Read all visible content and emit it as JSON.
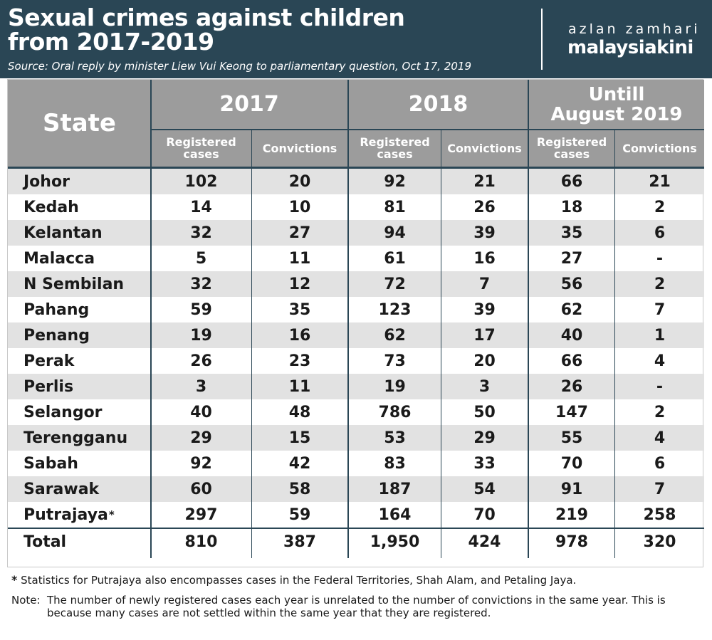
{
  "header": {
    "title_line1": "Sexual crimes against children",
    "title_line2": "from 2017-2019",
    "source": "Source: Oral reply by minister Liew Vui Keong to parliamentary question, Oct 17, 2019",
    "brand_top": "azlan zamhari",
    "brand_bottom": "malaysiakini",
    "bg_color": "#2a4655"
  },
  "table": {
    "state_header": "State",
    "years": [
      "2017",
      "2018",
      "Untill August 2019"
    ],
    "sub_headers": [
      "Registered cases",
      "Convictions"
    ],
    "header_bg": "#9c9c9c",
    "shade_color": "#e2e2e2",
    "rows": [
      {
        "state": "Johor",
        "marker": "",
        "values": [
          "102",
          "20",
          "92",
          "21",
          "66",
          "21"
        ]
      },
      {
        "state": "Kedah",
        "marker": "",
        "values": [
          "14",
          "10",
          "81",
          "26",
          "18",
          "2"
        ]
      },
      {
        "state": "Kelantan",
        "marker": "",
        "values": [
          "32",
          "27",
          "94",
          "39",
          "35",
          "6"
        ]
      },
      {
        "state": "Malacca",
        "marker": "",
        "values": [
          "5",
          "11",
          "61",
          "16",
          "27",
          "-"
        ]
      },
      {
        "state": "N Sembilan",
        "marker": "",
        "values": [
          "32",
          "12",
          "72",
          "7",
          "56",
          "2"
        ]
      },
      {
        "state": "Pahang",
        "marker": "",
        "values": [
          "59",
          "35",
          "123",
          "39",
          "62",
          "7"
        ]
      },
      {
        "state": "Penang",
        "marker": "",
        "values": [
          "19",
          "16",
          "62",
          "17",
          "40",
          "1"
        ]
      },
      {
        "state": "Perak",
        "marker": "",
        "values": [
          "26",
          "23",
          "73",
          "20",
          "66",
          "4"
        ]
      },
      {
        "state": "Perlis",
        "marker": "",
        "values": [
          "3",
          "11",
          "19",
          "3",
          "26",
          "-"
        ]
      },
      {
        "state": "Selangor",
        "marker": "",
        "values": [
          "40",
          "48",
          "786",
          "50",
          "147",
          "2"
        ]
      },
      {
        "state": "Terengganu",
        "marker": "",
        "values": [
          "29",
          "15",
          "53",
          "29",
          "55",
          "4"
        ]
      },
      {
        "state": "Sabah",
        "marker": "",
        "values": [
          "92",
          "42",
          "83",
          "33",
          "70",
          "6"
        ]
      },
      {
        "state": "Sarawak",
        "marker": "",
        "values": [
          "60",
          "58",
          "187",
          "54",
          "91",
          "7"
        ]
      },
      {
        "state": "Putrajaya",
        "marker": "*",
        "values": [
          "297",
          "59",
          "164",
          "70",
          "219",
          "258"
        ]
      }
    ],
    "total": {
      "state": "Total",
      "values": [
        "810",
        "387",
        "1,950",
        "424",
        "978",
        "320"
      ]
    }
  },
  "footnote": {
    "marker": "*",
    "text": " Statistics for Putrajaya also encompasses cases in the Federal Territories, Shah Alam, and Petaling Jaya."
  },
  "note": {
    "label": "Note:",
    "text": "The number of newly registered cases each year is unrelated to the number of convictions in the same year. This is because many cases are not settled within the same year that they are registered."
  },
  "chart_data": {
    "type": "table",
    "title": "Sexual crimes against children from 2017-2019",
    "columns": [
      "State",
      "2017 Registered cases",
      "2017 Convictions",
      "2018 Registered cases",
      "2018 Convictions",
      "Untill August 2019 Registered cases",
      "Untill August 2019 Convictions"
    ],
    "rows": [
      [
        "Johor",
        102,
        20,
        92,
        21,
        66,
        21
      ],
      [
        "Kedah",
        14,
        10,
        81,
        26,
        18,
        2
      ],
      [
        "Kelantan",
        32,
        27,
        94,
        39,
        35,
        6
      ],
      [
        "Malacca",
        5,
        11,
        61,
        16,
        27,
        null
      ],
      [
        "N Sembilan",
        32,
        12,
        72,
        7,
        56,
        2
      ],
      [
        "Pahang",
        59,
        35,
        123,
        39,
        62,
        7
      ],
      [
        "Penang",
        19,
        16,
        62,
        17,
        40,
        1
      ],
      [
        "Perak",
        26,
        23,
        73,
        20,
        66,
        4
      ],
      [
        "Perlis",
        3,
        11,
        19,
        3,
        26,
        null
      ],
      [
        "Selangor",
        40,
        48,
        786,
        50,
        147,
        2
      ],
      [
        "Terengganu",
        29,
        15,
        53,
        29,
        55,
        4
      ],
      [
        "Sabah",
        92,
        42,
        83,
        33,
        70,
        6
      ],
      [
        "Sarawak",
        60,
        58,
        187,
        54,
        91,
        7
      ],
      [
        "Putrajaya",
        297,
        59,
        164,
        70,
        219,
        258
      ],
      [
        "Total",
        810,
        387,
        1950,
        424,
        978,
        320
      ]
    ]
  }
}
